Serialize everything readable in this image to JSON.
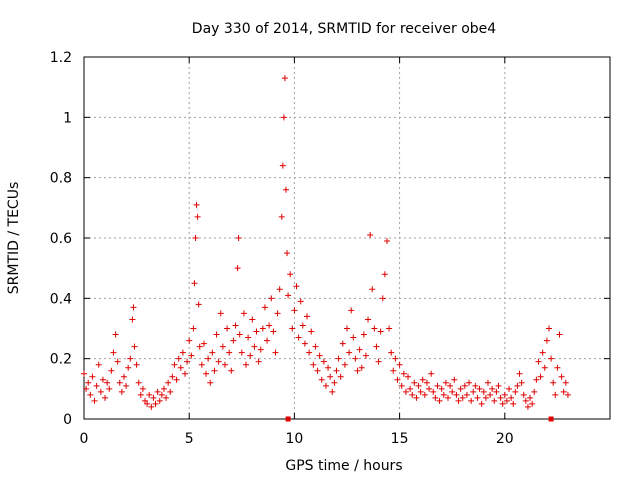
{
  "chart_data": {
    "type": "scatter",
    "title": "Day 330 of 2014, SRMTID for receiver obe4",
    "xlabel": "GPS time / hours",
    "ylabel": "SRMTID / TECUs",
    "xlim": [
      0,
      25
    ],
    "ylim": [
      0,
      1.2
    ],
    "grid": true,
    "x_ticks": [
      0,
      5,
      10,
      15,
      20
    ],
    "x_tick_labels": [
      "0",
      "5",
      "10",
      "15",
      "20"
    ],
    "y_ticks": [
      0,
      0.2,
      0.4,
      0.6,
      0.8,
      1.0,
      1.2
    ],
    "y_tick_labels": [
      "0",
      "0.2",
      "0.4",
      "0.6",
      "0.8",
      "1",
      "1.2"
    ],
    "marker": "plus",
    "color": "#e00000",
    "series": [
      {
        "name": "SRMTID",
        "points": [
          [
            0.0,
            0.15
          ],
          [
            0.1,
            0.1
          ],
          [
            0.2,
            0.12
          ],
          [
            0.3,
            0.08
          ],
          [
            0.4,
            0.14
          ],
          [
            0.5,
            0.06
          ],
          [
            0.6,
            0.11
          ],
          [
            0.7,
            0.18
          ],
          [
            0.8,
            0.09
          ],
          [
            0.9,
            0.13
          ],
          [
            1.0,
            0.07
          ],
          [
            1.1,
            0.12
          ],
          [
            1.2,
            0.1
          ],
          [
            1.3,
            0.16
          ],
          [
            1.4,
            0.22
          ],
          [
            1.5,
            0.28
          ],
          [
            1.6,
            0.19
          ],
          [
            1.7,
            0.12
          ],
          [
            1.8,
            0.09
          ],
          [
            1.9,
            0.14
          ],
          [
            2.0,
            0.11
          ],
          [
            2.1,
            0.17
          ],
          [
            2.2,
            0.2
          ],
          [
            2.3,
            0.33
          ],
          [
            2.35,
            0.37
          ],
          [
            2.4,
            0.24
          ],
          [
            2.5,
            0.18
          ],
          [
            2.6,
            0.12
          ],
          [
            2.7,
            0.08
          ],
          [
            2.8,
            0.1
          ],
          [
            2.9,
            0.06
          ],
          [
            3.0,
            0.05
          ],
          [
            3.1,
            0.08
          ],
          [
            3.2,
            0.04
          ],
          [
            3.3,
            0.07
          ],
          [
            3.4,
            0.05
          ],
          [
            3.5,
            0.09
          ],
          [
            3.6,
            0.06
          ],
          [
            3.7,
            0.08
          ],
          [
            3.8,
            0.1
          ],
          [
            3.9,
            0.07
          ],
          [
            4.0,
            0.12
          ],
          [
            4.1,
            0.09
          ],
          [
            4.2,
            0.14
          ],
          [
            4.3,
            0.18
          ],
          [
            4.4,
            0.13
          ],
          [
            4.5,
            0.2
          ],
          [
            4.6,
            0.17
          ],
          [
            4.7,
            0.22
          ],
          [
            4.8,
            0.15
          ],
          [
            4.9,
            0.19
          ],
          [
            5.0,
            0.26
          ],
          [
            5.1,
            0.21
          ],
          [
            5.2,
            0.3
          ],
          [
            5.25,
            0.45
          ],
          [
            5.3,
            0.6
          ],
          [
            5.35,
            0.71
          ],
          [
            5.4,
            0.67
          ],
          [
            5.45,
            0.38
          ],
          [
            5.5,
            0.24
          ],
          [
            5.6,
            0.18
          ],
          [
            5.7,
            0.25
          ],
          [
            5.8,
            0.15
          ],
          [
            5.9,
            0.2
          ],
          [
            6.0,
            0.12
          ],
          [
            6.1,
            0.22
          ],
          [
            6.2,
            0.16
          ],
          [
            6.3,
            0.28
          ],
          [
            6.4,
            0.19
          ],
          [
            6.5,
            0.35
          ],
          [
            6.6,
            0.24
          ],
          [
            6.7,
            0.18
          ],
          [
            6.8,
            0.3
          ],
          [
            6.9,
            0.22
          ],
          [
            7.0,
            0.16
          ],
          [
            7.1,
            0.26
          ],
          [
            7.2,
            0.31
          ],
          [
            7.3,
            0.5
          ],
          [
            7.35,
            0.6
          ],
          [
            7.4,
            0.28
          ],
          [
            7.5,
            0.22
          ],
          [
            7.6,
            0.35
          ],
          [
            7.7,
            0.18
          ],
          [
            7.8,
            0.27
          ],
          [
            7.9,
            0.21
          ],
          [
            8.0,
            0.33
          ],
          [
            8.1,
            0.24
          ],
          [
            8.2,
            0.29
          ],
          [
            8.3,
            0.19
          ],
          [
            8.4,
            0.23
          ],
          [
            8.5,
            0.3
          ],
          [
            8.6,
            0.37
          ],
          [
            8.7,
            0.26
          ],
          [
            8.8,
            0.31
          ],
          [
            8.9,
            0.4
          ],
          [
            9.0,
            0.29
          ],
          [
            9.1,
            0.22
          ],
          [
            9.2,
            0.35
          ],
          [
            9.3,
            0.43
          ],
          [
            9.4,
            0.67
          ],
          [
            9.45,
            0.84
          ],
          [
            9.5,
            1.0
          ],
          [
            9.55,
            1.13
          ],
          [
            9.6,
            0.76
          ],
          [
            9.65,
            0.55
          ],
          [
            9.7,
            0.41
          ],
          [
            9.8,
            0.48
          ],
          [
            9.9,
            0.3
          ],
          [
            10.0,
            0.36
          ],
          [
            10.1,
            0.44
          ],
          [
            10.2,
            0.27
          ],
          [
            10.3,
            0.39
          ],
          [
            10.4,
            0.31
          ],
          [
            10.5,
            0.25
          ],
          [
            10.6,
            0.34
          ],
          [
            10.7,
            0.22
          ],
          [
            10.8,
            0.29
          ],
          [
            10.9,
            0.18
          ],
          [
            11.0,
            0.24
          ],
          [
            11.1,
            0.16
          ],
          [
            11.2,
            0.21
          ],
          [
            11.3,
            0.13
          ],
          [
            11.4,
            0.19
          ],
          [
            11.5,
            0.11
          ],
          [
            11.6,
            0.17
          ],
          [
            11.7,
            0.14
          ],
          [
            11.8,
            0.09
          ],
          [
            11.9,
            0.12
          ],
          [
            12.0,
            0.16
          ],
          [
            12.1,
            0.2
          ],
          [
            12.2,
            0.14
          ],
          [
            12.3,
            0.25
          ],
          [
            12.4,
            0.18
          ],
          [
            12.5,
            0.3
          ],
          [
            12.6,
            0.22
          ],
          [
            12.7,
            0.36
          ],
          [
            12.8,
            0.27
          ],
          [
            12.9,
            0.2
          ],
          [
            13.0,
            0.16
          ],
          [
            13.1,
            0.23
          ],
          [
            13.2,
            0.17
          ],
          [
            13.3,
            0.28
          ],
          [
            13.4,
            0.21
          ],
          [
            13.5,
            0.33
          ],
          [
            13.6,
            0.61
          ],
          [
            13.7,
            0.43
          ],
          [
            13.8,
            0.3
          ],
          [
            13.9,
            0.24
          ],
          [
            14.0,
            0.19
          ],
          [
            14.1,
            0.29
          ],
          [
            14.2,
            0.4
          ],
          [
            14.3,
            0.48
          ],
          [
            14.4,
            0.59
          ],
          [
            14.5,
            0.3
          ],
          [
            14.6,
            0.22
          ],
          [
            14.7,
            0.16
          ],
          [
            14.8,
            0.2
          ],
          [
            14.9,
            0.13
          ],
          [
            15.0,
            0.18
          ],
          [
            15.1,
            0.11
          ],
          [
            15.2,
            0.15
          ],
          [
            15.3,
            0.09
          ],
          [
            15.4,
            0.14
          ],
          [
            15.5,
            0.1
          ],
          [
            15.6,
            0.08
          ],
          [
            15.7,
            0.12
          ],
          [
            15.8,
            0.07
          ],
          [
            15.9,
            0.11
          ],
          [
            16.0,
            0.09
          ],
          [
            16.1,
            0.13
          ],
          [
            16.2,
            0.08
          ],
          [
            16.3,
            0.12
          ],
          [
            16.4,
            0.1
          ],
          [
            16.5,
            0.15
          ],
          [
            16.6,
            0.09
          ],
          [
            16.7,
            0.07
          ],
          [
            16.8,
            0.11
          ],
          [
            16.9,
            0.06
          ],
          [
            17.0,
            0.1
          ],
          [
            17.1,
            0.08
          ],
          [
            17.2,
            0.12
          ],
          [
            17.3,
            0.07
          ],
          [
            17.4,
            0.11
          ],
          [
            17.5,
            0.09
          ],
          [
            17.6,
            0.13
          ],
          [
            17.7,
            0.08
          ],
          [
            17.8,
            0.06
          ],
          [
            17.9,
            0.1
          ],
          [
            18.0,
            0.07
          ],
          [
            18.1,
            0.11
          ],
          [
            18.2,
            0.08
          ],
          [
            18.3,
            0.12
          ],
          [
            18.4,
            0.06
          ],
          [
            18.5,
            0.09
          ],
          [
            18.6,
            0.11
          ],
          [
            18.7,
            0.07
          ],
          [
            18.8,
            0.1
          ],
          [
            18.9,
            0.05
          ],
          [
            19.0,
            0.09
          ],
          [
            19.1,
            0.07
          ],
          [
            19.2,
            0.12
          ],
          [
            19.3,
            0.08
          ],
          [
            19.4,
            0.1
          ],
          [
            19.5,
            0.06
          ],
          [
            19.6,
            0.09
          ],
          [
            19.7,
            0.11
          ],
          [
            19.8,
            0.07
          ],
          [
            19.9,
            0.05
          ],
          [
            20.0,
            0.08
          ],
          [
            20.1,
            0.06
          ],
          [
            20.2,
            0.1
          ],
          [
            20.3,
            0.07
          ],
          [
            20.4,
            0.05
          ],
          [
            20.5,
            0.09
          ],
          [
            20.6,
            0.11
          ],
          [
            20.7,
            0.15
          ],
          [
            20.8,
            0.12
          ],
          [
            20.9,
            0.08
          ],
          [
            21.0,
            0.06
          ],
          [
            21.1,
            0.04
          ],
          [
            21.2,
            0.07
          ],
          [
            21.3,
            0.05
          ],
          [
            21.4,
            0.09
          ],
          [
            21.5,
            0.13
          ],
          [
            21.6,
            0.19
          ],
          [
            21.7,
            0.14
          ],
          [
            21.8,
            0.22
          ],
          [
            21.9,
            0.17
          ],
          [
            22.0,
            0.26
          ],
          [
            22.1,
            0.3
          ],
          [
            22.2,
            0.2
          ],
          [
            22.3,
            0.12
          ],
          [
            22.4,
            0.08
          ],
          [
            22.5,
            0.17
          ],
          [
            22.6,
            0.28
          ],
          [
            22.7,
            0.14
          ],
          [
            22.8,
            0.09
          ],
          [
            22.9,
            0.12
          ],
          [
            23.0,
            0.08
          ]
        ],
        "baseline_marks": [
          9.7,
          22.2
        ]
      }
    ]
  }
}
